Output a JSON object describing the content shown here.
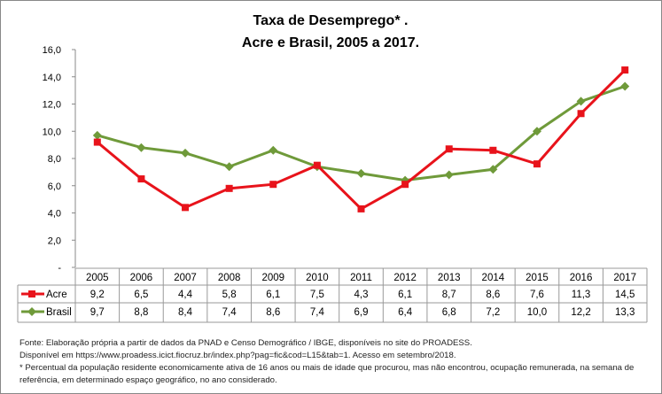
{
  "chart_data": {
    "type": "line",
    "title_lines": [
      "Taxa de Desemprego* .",
      "Acre e Brasil, 2005 a 2017."
    ],
    "xlabel": "",
    "ylabel": "",
    "categories": [
      "2005",
      "2006",
      "2007",
      "2008",
      "2009",
      "2010",
      "2011",
      "2012",
      "2013",
      "2014",
      "2015",
      "2016",
      "2017"
    ],
    "ylim": [
      0,
      16
    ],
    "yticks": [
      0,
      2,
      4,
      6,
      8,
      10,
      12,
      14,
      16
    ],
    "ytick_labels": [
      "-",
      "2,0",
      "4,0",
      "6,0",
      "8,0",
      "10,0",
      "12,0",
      "14,0",
      "16,0"
    ],
    "grid": false,
    "legend": "data-table",
    "series": [
      {
        "name": "Acre",
        "color": "#e8131b",
        "marker": "square",
        "values": [
          9.2,
          6.5,
          4.4,
          5.8,
          6.1,
          7.5,
          4.3,
          6.1,
          8.7,
          8.6,
          7.6,
          11.3,
          14.5
        ],
        "labels": [
          "9,2",
          "6,5",
          "4,4",
          "5,8",
          "6,1",
          "7,5",
          "4,3",
          "6,1",
          "8,7",
          "8,6",
          "7,6",
          "11,3",
          "14,5"
        ]
      },
      {
        "name": "Brasil",
        "color": "#6f9a3a",
        "marker": "diamond",
        "values": [
          9.7,
          8.8,
          8.4,
          7.4,
          8.6,
          7.4,
          6.9,
          6.4,
          6.8,
          7.2,
          10.0,
          12.2,
          13.3
        ],
        "labels": [
          "9,7",
          "8,8",
          "8,4",
          "7,4",
          "8,6",
          "7,4",
          "6,9",
          "6,4",
          "6,8",
          "7,2",
          "10,0",
          "12,2",
          "13,3"
        ]
      }
    ]
  },
  "notes": [
    "Fonte: Elaboração própria a partir de dados da PNAD e Censo Demográfico / IBGE, disponíveis no site do PROADESS.",
    "Disponível em https://www.proadess.icict.fiocruz.br/index.php?pag=fic&cod=L15&tab=1. Acesso em  setembro/2018.",
    "* Percentual da população residente economicamente ativa de 16 anos ou mais de idade que procurou, mas não encontrou, ocupação remunerada, na semana de",
    "referência, em determinado espaço geográfico, no ano considerado."
  ]
}
